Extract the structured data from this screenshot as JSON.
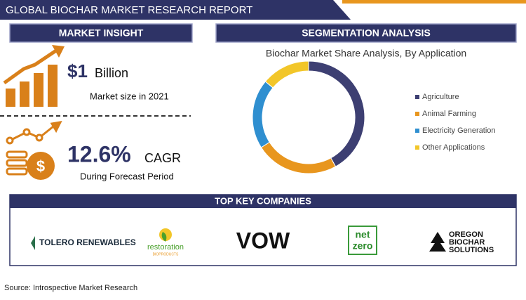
{
  "header": {
    "title": "GLOBAL BIOCHAR MARKET RESEARCH REPORT"
  },
  "market_insight": {
    "heading": "MARKET INSIGHT",
    "size_value": "$1",
    "size_unit": "Billion",
    "size_label": "Market size in 2021",
    "cagr_value": "12.6%",
    "cagr_unit": "CAGR",
    "cagr_label": "During Forecast Period"
  },
  "segmentation": {
    "heading": "SEGMENTATION ANALYSIS"
  },
  "chart_data": {
    "type": "donut",
    "title": "Biochar Market Share Analysis, By Application",
    "categories": [
      "Agriculture",
      "Animal Farming",
      "Electricity Generation",
      "Other Applications"
    ],
    "values": [
      42,
      24,
      20,
      14
    ],
    "colors": [
      "#3d3f72",
      "#e8961e",
      "#2f8fd0",
      "#f2c629"
    ]
  },
  "companies": {
    "heading": "TOP KEY COMPANIES",
    "logos": [
      [
        "TOLERO RENEWABLES"
      ],
      [
        "restoration",
        "BIOPRODUCTS"
      ],
      [
        "VOW"
      ],
      [
        "net",
        "zero"
      ],
      [
        "OREGON",
        "BIOCHAR",
        "SOLUTIONS"
      ]
    ]
  },
  "source": "Source: Introspective Market Research"
}
